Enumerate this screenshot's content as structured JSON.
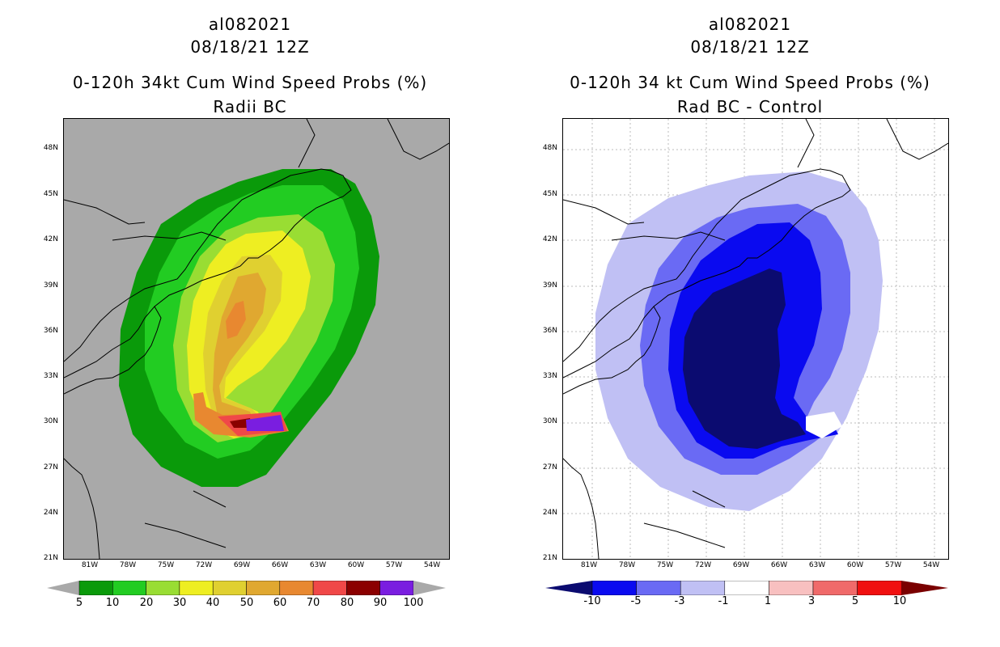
{
  "left": {
    "title_line1": "al082021",
    "title_line2": "08/18/21 12Z",
    "title_line3": "0-120h 34kt Cum Wind Speed Probs (%)",
    "title_line4": "Radii BC",
    "colorbar_labels": [
      "5",
      "10",
      "20",
      "30",
      "40",
      "50",
      "60",
      "70",
      "80",
      "90",
      "100"
    ],
    "colorbar_colors": [
      "#0a9a0a",
      "#22cc22",
      "#99dd33",
      "#eeee22",
      "#e0d030",
      "#e0a830",
      "#e88830",
      "#f04848",
      "#8b0000",
      "#7a1ee0"
    ]
  },
  "right": {
    "title_line1": "al082021",
    "title_line2": "08/18/21 12Z",
    "title_line3": "0-120h 34 kt Cum Wind Speed Probs (%)",
    "title_line4": "Rad BC - Control",
    "colorbar_labels": [
      "-10",
      "-5",
      "-3",
      "-1",
      "1",
      "3",
      "5",
      "10"
    ],
    "colorbar_colors": [
      "#0b0b70",
      "#0a0af0",
      "#6a6af4",
      "#c0c0f4",
      "#ffffff",
      "#f8c0c0",
      "#f06a6a",
      "#f01010",
      "#7a0000"
    ]
  },
  "lat_labels": [
    "48N",
    "45N",
    "42N",
    "39N",
    "36N",
    "33N",
    "30N",
    "27N",
    "24N",
    "21N"
  ],
  "lon_labels": [
    "81W",
    "78W",
    "75W",
    "72W",
    "69W",
    "66W",
    "63W",
    "60W",
    "57W",
    "54W"
  ]
}
